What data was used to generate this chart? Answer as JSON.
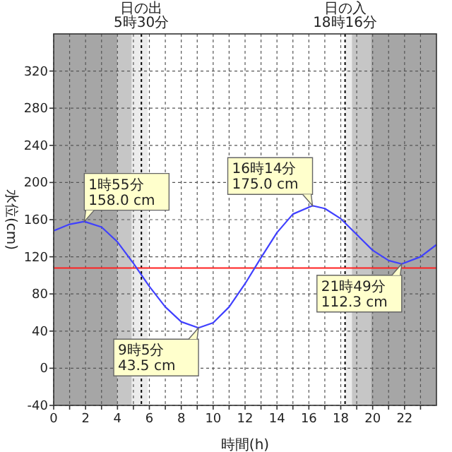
{
  "chart_data": {
    "type": "line",
    "xlabel": "時間(h)",
    "ylabel": "水位(cm)",
    "x": [
      0,
      1,
      1.92,
      3,
      4,
      5,
      6,
      7,
      8,
      9.08,
      10,
      11,
      12,
      13,
      14,
      15,
      16.23,
      17,
      18,
      19,
      20,
      21,
      21.82,
      23,
      24
    ],
    "series": [
      {
        "color": "#4040ff",
        "values": [
          148,
          155,
          158,
          152,
          136,
          113,
          88,
          66,
          50,
          43.5,
          49,
          66,
          91,
          119,
          146,
          166,
          175,
          172,
          161,
          144,
          127,
          116,
          112.3,
          120,
          133
        ]
      }
    ],
    "xlim": [
      0,
      24
    ],
    "ylim": [
      -40,
      360
    ],
    "xticks": [
      0,
      {
        "value": 1,
        "label": null
      },
      2,
      {
        "value": 3,
        "label": null
      },
      4,
      {
        "value": 5,
        "label": null
      },
      6,
      {
        "value": 7,
        "label": null
      },
      8,
      {
        "value": 9,
        "label": null
      },
      10,
      {
        "value": 11,
        "label": null
      },
      12,
      {
        "value": 13,
        "label": null
      },
      14,
      {
        "value": 15,
        "label": null
      },
      16,
      {
        "value": 17,
        "label": null
      },
      18,
      {
        "value": 19,
        "label": null
      },
      20,
      {
        "value": 21,
        "label": null
      },
      22,
      {
        "value": 23,
        "label": null
      }
    ],
    "yticks": [
      -40,
      0,
      40,
      80,
      120,
      160,
      200,
      240,
      280,
      320
    ],
    "grid": true,
    "line_style": "solid",
    "marker": "none",
    "bands": [
      {
        "axis": "x",
        "from": 0,
        "to": 4,
        "color": "#a6a6a6"
      },
      {
        "axis": "x",
        "from": 4,
        "to": 4.9,
        "color": "#c6c6c6"
      },
      {
        "axis": "x",
        "from": 4.9,
        "to": 5.9,
        "color": "#ececec"
      },
      {
        "axis": "x",
        "from": 18.3,
        "to": 18.7,
        "color": "#ececec"
      },
      {
        "axis": "x",
        "from": 18.7,
        "to": 19.9,
        "color": "#c6c6c6"
      },
      {
        "axis": "x",
        "from": 19.9,
        "to": 24,
        "color": "#a6a6a6"
      }
    ],
    "ref_lines": [
      {
        "axis": "x",
        "value": 5.5,
        "label": "日の出\n5時30分",
        "color": "#000000",
        "line_style": "dotted"
      },
      {
        "axis": "x",
        "value": 18.27,
        "label": "日の入\n18時16分",
        "color": "#000000",
        "line_style": "dotted"
      },
      {
        "axis": "y",
        "value": 108,
        "color": "#ff2020",
        "line_style": "solid"
      }
    ],
    "annotations": [
      {
        "text": "1時55分\n158.0 cm",
        "x": 1.92,
        "y": 158
      },
      {
        "text": "9時5分\n43.5 cm",
        "x": 9.08,
        "y": 43.5
      },
      {
        "text": "16時14分\n175.0 cm",
        "x": 16.23,
        "y": 175
      },
      {
        "text": "21時49分\n112.3 cm",
        "x": 21.82,
        "y": 112.3
      }
    ]
  }
}
